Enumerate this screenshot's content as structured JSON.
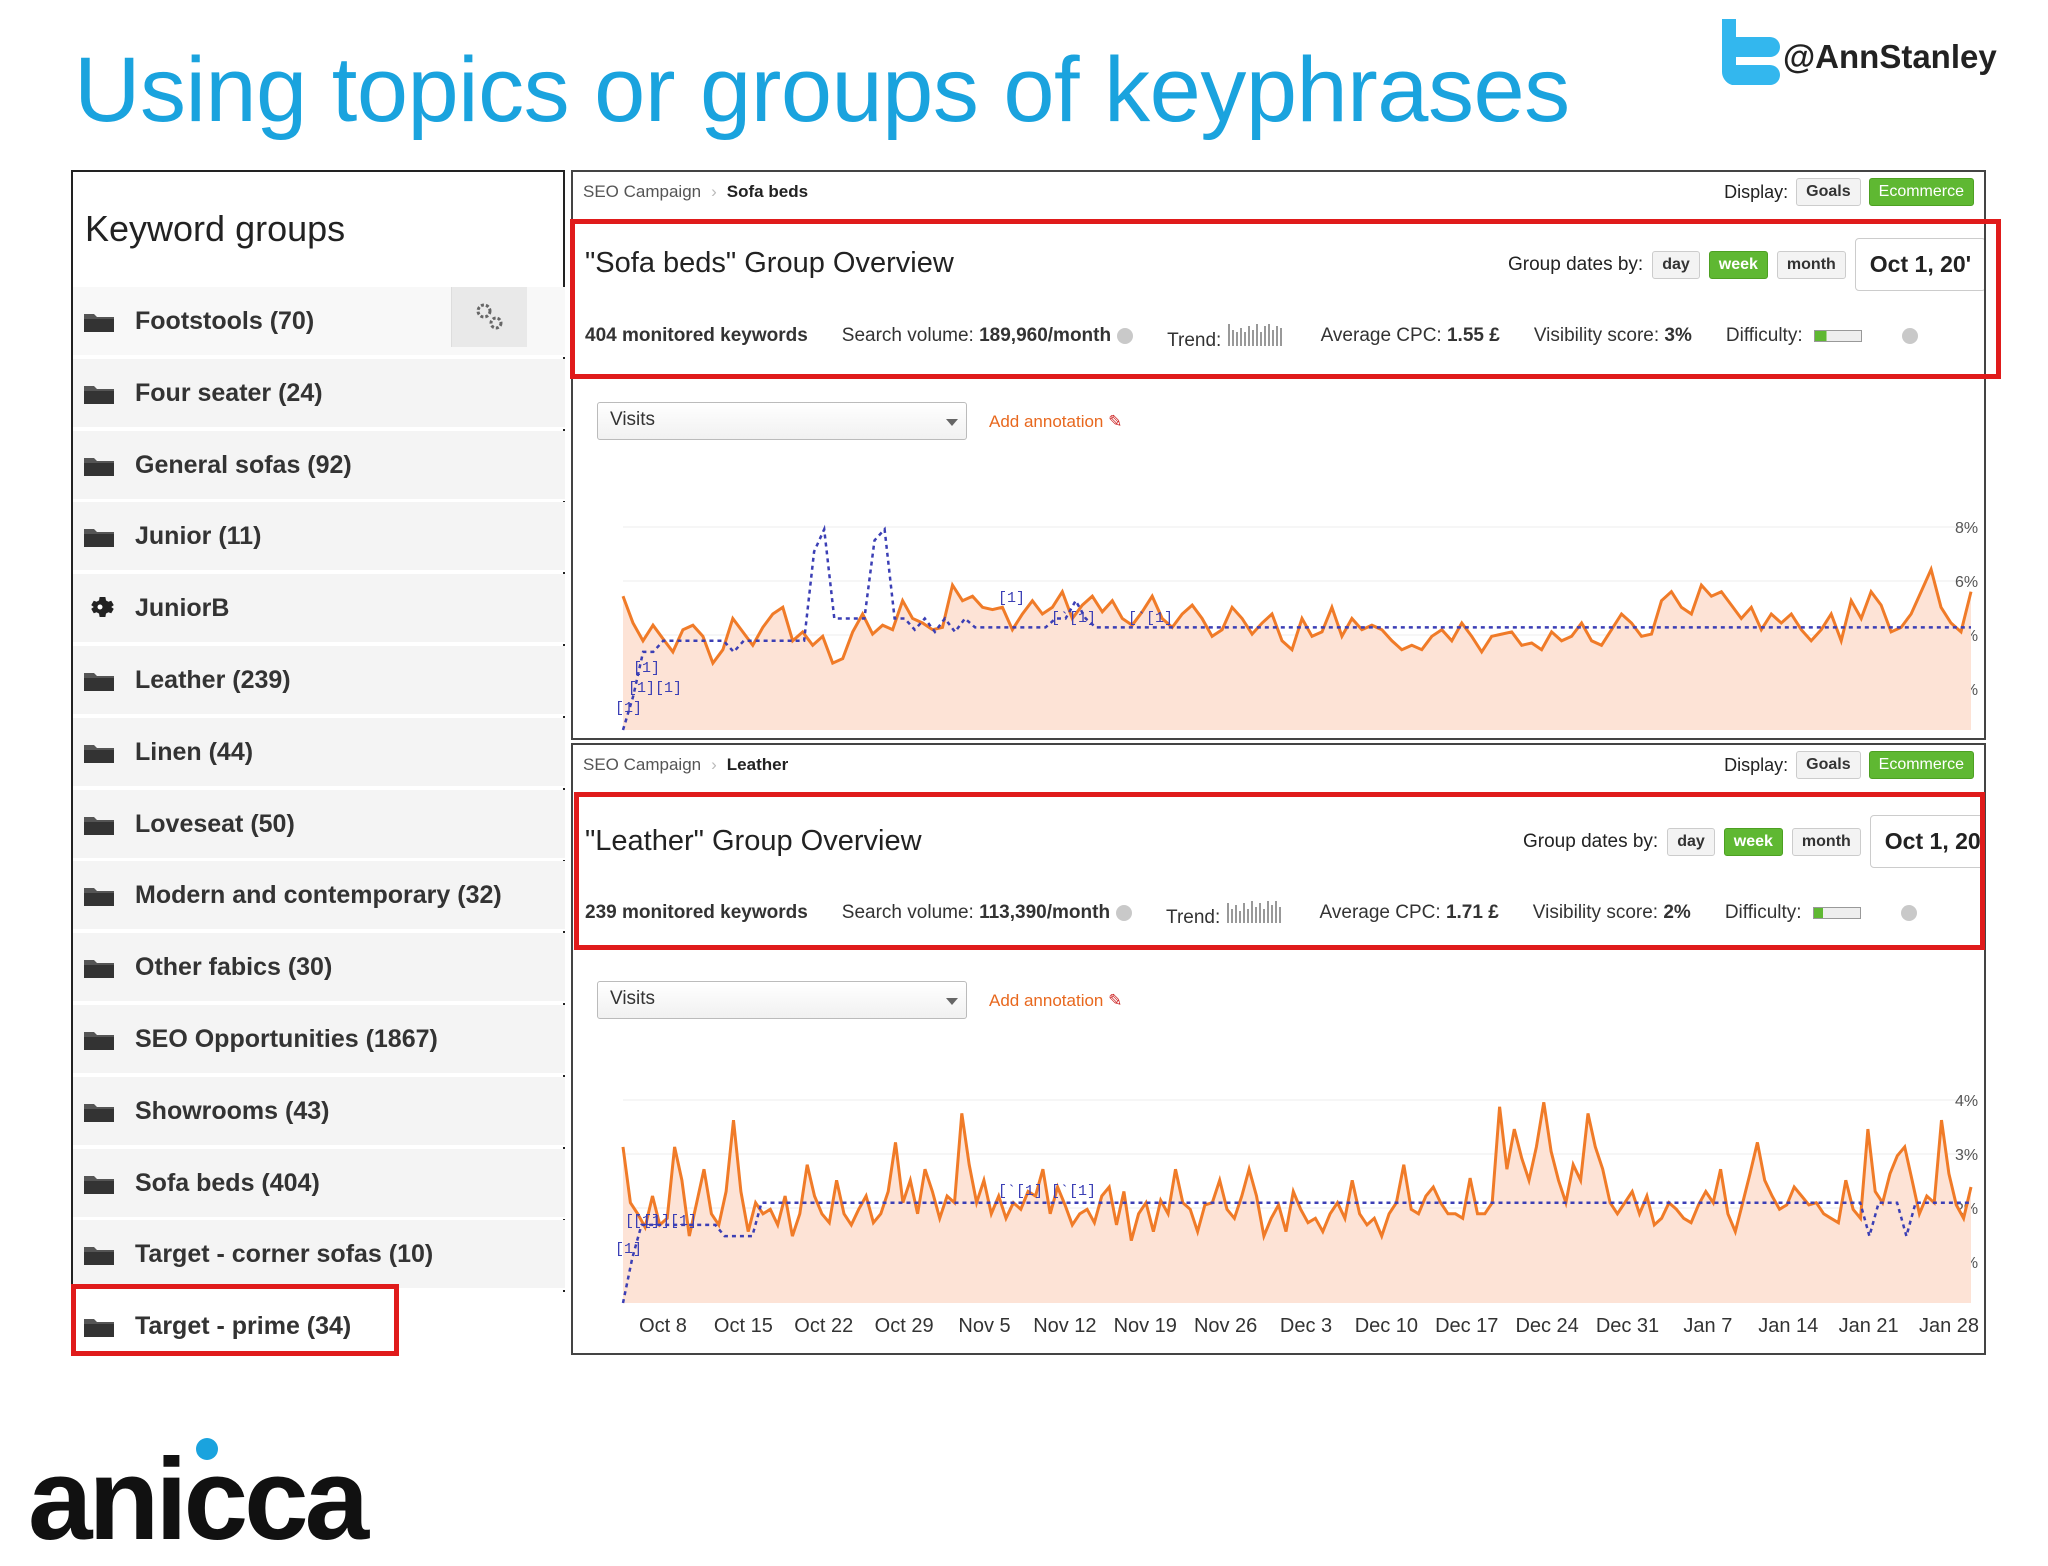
{
  "slide": {
    "title": "Using topics or groups of keyphrases",
    "handle": "@AnnStanley",
    "brand": "anicca"
  },
  "colors": {
    "accent": "#1aa3de",
    "highlight": "#e01b1b",
    "series": "#f07b28",
    "dotted": "#3b3fb5",
    "green": "#5fb832"
  },
  "keyword_groups": {
    "title": "Keyword groups",
    "items": [
      {
        "label": "Footstools  (70)",
        "icon": "folder-icon"
      },
      {
        "label": "Four seater  (24)",
        "icon": "folder-icon"
      },
      {
        "label": "General sofas  (92)",
        "icon": "folder-icon"
      },
      {
        "label": "Junior  (11)",
        "icon": "folder-icon"
      },
      {
        "label": "JuniorB",
        "icon": "gear-icon"
      },
      {
        "label": "Leather  (239)",
        "icon": "folder-icon"
      },
      {
        "label": "Linen  (44)",
        "icon": "folder-icon"
      },
      {
        "label": "Loveseat  (50)",
        "icon": "folder-icon"
      },
      {
        "label": "Modern and contemporary  (32)",
        "icon": "folder-icon"
      },
      {
        "label": "Other fabics  (30)",
        "icon": "folder-icon"
      },
      {
        "label": "SEO Opportunities  (1867)",
        "icon": "folder-icon"
      },
      {
        "label": "Showrooms  (43)",
        "icon": "folder-icon"
      },
      {
        "label": "Sofa beds  (404)",
        "icon": "folder-icon"
      },
      {
        "label": "Target - corner sofas  (10)",
        "icon": "folder-icon"
      },
      {
        "label": "Target - prime  (34)",
        "icon": "folder-icon"
      }
    ]
  },
  "dashboards": [
    {
      "breadcrumb": [
        "SEO Campaign",
        "Sofa beds"
      ],
      "display_label": "Display:",
      "goals": "Goals",
      "ecommerce": "Ecommerce",
      "overview_title": "\"Sofa beds\" Group Overview",
      "group_dates_label": "Group dates by:",
      "day": "day",
      "week": "week",
      "month": "month",
      "date": "Oct 1, 20'",
      "monitored": "404 monitored keywords",
      "search_volume_label": "Search volume:",
      "search_volume": "189,960/month",
      "trend_label": "Trend:",
      "cpc_label": "Average CPC:",
      "cpc": "1.55 £",
      "visibility_label": "Visibility score:",
      "visibility": "3%",
      "difficulty_label": "Difficulty:",
      "metric": "Visits",
      "add_annotation": "Add annotation",
      "y_ticks": [
        "8%",
        "6%",
        "4%",
        "2%"
      ]
    },
    {
      "breadcrumb": [
        "SEO Campaign",
        "Leather"
      ],
      "display_label": "Display:",
      "goals": "Goals",
      "ecommerce": "Ecommerce",
      "overview_title": "\"Leather\" Group Overview",
      "group_dates_label": "Group dates by:",
      "day": "day",
      "week": "week",
      "month": "month",
      "date": "Oct 1, 20",
      "monitored": "239 monitored keywords",
      "search_volume_label": "Search volume:",
      "search_volume": "113,390/month",
      "trend_label": "Trend:",
      "cpc_label": "Average CPC:",
      "cpc": "1.71 £",
      "visibility_label": "Visibility score:",
      "visibility": "2%",
      "difficulty_label": "Difficulty:",
      "metric": "Visits",
      "add_annotation": "Add annotation",
      "y_ticks": [
        "4%",
        "3%",
        "2%",
        "1%"
      ]
    }
  ],
  "chart_data": [
    {
      "type": "line",
      "x_labels": [
        "Oct 8",
        "Oct 15",
        "Oct 22",
        "Oct 29",
        "Nov 5",
        "Nov 12",
        "Nov 19",
        "Nov 26",
        "Dec 3",
        "Dec 10",
        "Dec 17",
        "Dec 24",
        "Dec 31",
        "Jan 7",
        "Jan 14",
        "Jan 21",
        "Jan 28"
      ],
      "y_ticks": [
        "8%",
        "6%",
        "4%",
        "2%"
      ],
      "series": [
        {
          "style": "solid-area",
          "values": [
            60,
            48,
            40,
            47,
            41,
            35,
            45,
            47,
            42,
            30,
            36,
            50,
            44,
            38,
            46,
            52,
            55,
            40,
            44,
            38,
            42,
            30,
            32,
            44,
            52,
            43,
            47,
            45,
            58,
            50,
            48,
            45,
            46,
            65,
            58,
            60,
            55,
            54,
            55,
            45,
            52,
            58,
            52,
            55,
            62,
            50,
            56,
            60,
            53,
            58,
            50,
            47,
            53,
            60,
            50,
            46,
            52,
            56,
            50,
            42,
            45,
            55,
            50,
            43,
            48,
            52,
            40,
            36,
            50,
            42,
            44,
            55,
            42,
            50,
            45,
            47,
            45,
            40,
            36,
            38,
            36,
            42,
            45,
            40,
            48,
            42,
            35,
            42,
            43,
            44,
            38,
            39,
            36,
            44,
            40,
            42,
            48,
            40,
            38,
            45,
            52,
            48,
            42,
            43,
            58,
            62,
            55,
            52,
            65,
            60,
            62,
            56,
            50,
            55,
            45,
            52,
            48,
            52,
            45,
            40,
            45,
            52,
            40,
            58,
            50,
            62,
            56,
            44,
            46,
            52,
            62,
            72,
            55,
            48,
            44,
            62
          ]
        },
        {
          "style": "dotted",
          "values": [
            0,
            15,
            35,
            35,
            40,
            40,
            40,
            40,
            40,
            40,
            40,
            35,
            40,
            40,
            40,
            40,
            40,
            40,
            40,
            80,
            90,
            50,
            50,
            50,
            50,
            85,
            90,
            50,
            50,
            45,
            50,
            44,
            50,
            44,
            50,
            46,
            46,
            46,
            46,
            46,
            46,
            46,
            46,
            50,
            50,
            58,
            50,
            46,
            46,
            46,
            46,
            46,
            46,
            46,
            46,
            46,
            46,
            46,
            46,
            46,
            46,
            46,
            46,
            46,
            46,
            46,
            46,
            46,
            46,
            46,
            46,
            46,
            46,
            46,
            46,
            46,
            46,
            46,
            46,
            46,
            46,
            46,
            46,
            46,
            46,
            46,
            46,
            46,
            46,
            46,
            46,
            46,
            46,
            46,
            46,
            46,
            46,
            46,
            46,
            46,
            46,
            46,
            46,
            46,
            46,
            46,
            46,
            46,
            46,
            46,
            46,
            46,
            46,
            46,
            46,
            46,
            46,
            46,
            46,
            46,
            46,
            46,
            46,
            46,
            46,
            46,
            46,
            46,
            46,
            46,
            46,
            46,
            46,
            46,
            46
          ]
        }
      ],
      "annotations": [
        "[1]",
        "[1][1]",
        "[1]",
        "[1]",
        "[`[1]",
        "[`[1]"
      ]
    },
    {
      "type": "line",
      "x_labels": [
        "Oct 8",
        "Oct 15",
        "Oct 22",
        "Oct 29",
        "Nov 5",
        "Nov 12",
        "Nov 19",
        "Nov 26",
        "Dec 3",
        "Dec 10",
        "Dec 17",
        "Dec 24",
        "Dec 31",
        "Jan 7",
        "Jan 14",
        "Jan 21",
        "Jan 28"
      ],
      "y_ticks": [
        "4%",
        "3%",
        "2%",
        "1%"
      ],
      "series": [
        {
          "style": "solid-area",
          "values": [
            70,
            45,
            40,
            34,
            48,
            35,
            38,
            70,
            55,
            30,
            45,
            60,
            40,
            35,
            50,
            82,
            50,
            32,
            45,
            40,
            42,
            35,
            48,
            30,
            40,
            62,
            48,
            40,
            36,
            55,
            40,
            35,
            42,
            48,
            36,
            40,
            50,
            72,
            45,
            55,
            40,
            60,
            50,
            38,
            48,
            45,
            85,
            62,
            45,
            55,
            40,
            48,
            38,
            45,
            42,
            50,
            48,
            60,
            40,
            52,
            44,
            35,
            40,
            42,
            36,
            48,
            52,
            35,
            50,
            28,
            40,
            45,
            32,
            46,
            40,
            60,
            45,
            42,
            32,
            44,
            45,
            55,
            42,
            38,
            48,
            60,
            48,
            30,
            38,
            44,
            32,
            50,
            42,
            36,
            38,
            32,
            40,
            45,
            38,
            55,
            40,
            35,
            38,
            30,
            40,
            45,
            62,
            42,
            40,
            48,
            52,
            45,
            40,
            40,
            38,
            56,
            40,
            40,
            45,
            88,
            60,
            78,
            65,
            55,
            70,
            90,
            68,
            55,
            45,
            62,
            55,
            85,
            70,
            60,
            45,
            40,
            45,
            50,
            40,
            48,
            35,
            38,
            45,
            42,
            38,
            36,
            44,
            50,
            45,
            60,
            40,
            32,
            45,
            58,
            72,
            55,
            48,
            42,
            44,
            52,
            48,
            44,
            45,
            40,
            38,
            36,
            55,
            42,
            38,
            78,
            50,
            45,
            58,
            66,
            70,
            55,
            40,
            48,
            45,
            82,
            58,
            44,
            38,
            52
          ]
        },
        {
          "style": "dotted",
          "values": [
            0,
            20,
            35,
            35,
            35,
            35,
            35,
            35,
            35,
            35,
            35,
            30,
            30,
            30,
            30,
            45,
            45,
            45,
            45,
            45,
            45,
            45,
            45,
            45,
            45,
            45,
            45,
            45,
            45,
            45,
            45,
            45,
            45,
            45,
            45,
            45,
            45,
            45,
            45,
            45,
            45,
            45,
            45,
            45,
            45,
            45,
            45,
            45,
            45,
            45,
            45,
            45,
            45,
            45,
            45,
            45,
            45,
            45,
            45,
            45,
            45,
            45,
            45,
            45,
            45,
            45,
            45,
            45,
            45,
            45,
            45,
            45,
            45,
            45,
            45,
            45,
            45,
            45,
            45,
            45,
            45,
            45,
            45,
            45,
            45,
            45,
            45,
            45,
            45,
            45,
            45,
            45,
            45,
            45,
            45,
            45,
            45,
            45,
            45,
            45,
            45,
            45,
            45,
            45,
            45,
            45,
            45,
            45,
            45,
            45,
            45,
            45,
            45,
            45,
            45,
            45,
            45,
            45,
            45,
            45,
            45,
            45,
            45,
            45,
            45,
            45,
            45,
            45,
            45,
            45,
            45,
            45,
            45,
            45,
            45,
            30,
            45,
            45,
            45,
            30,
            45,
            45,
            45,
            45,
            45,
            45,
            45
          ]
        }
      ],
      "annotations": [
        "[1]",
        "[`[1][1]",
        "[1]",
        "[`[1]",
        "[`[1]"
      ]
    }
  ]
}
